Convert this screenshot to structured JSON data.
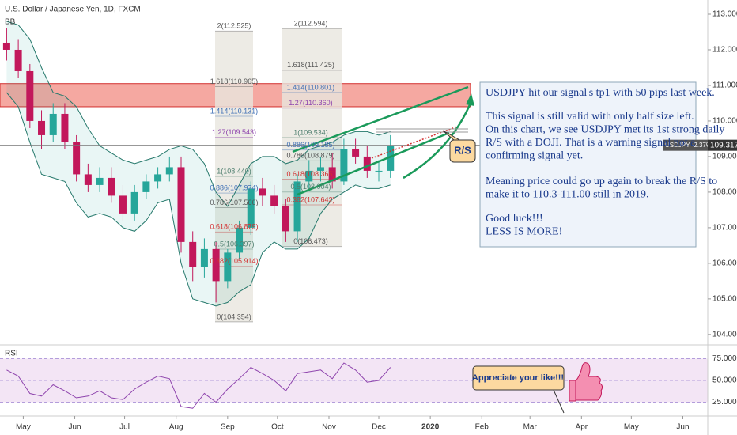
{
  "chart_data": {
    "type": "candlestick",
    "title": "U.S. Dollar / Japanese Yen, 1D, FXCM",
    "indicator": "BB",
    "x": [
      -10,
      -3,
      4,
      11,
      18,
      25,
      32,
      39,
      46,
      53,
      60,
      67,
      74,
      81,
      88,
      95,
      102,
      109,
      116,
      123,
      130,
      137,
      144,
      151,
      158,
      165,
      172,
      179,
      186,
      193,
      200,
      207,
      214,
      221
    ],
    "open": [
      112.2,
      112.0,
      111.4,
      110.0,
      109.6,
      110.2,
      109.4,
      108.5,
      108.2,
      108.4,
      107.9,
      107.4,
      108.0,
      108.3,
      108.5,
      108.7,
      106.6,
      105.9,
      106.4,
      105.5,
      106.3,
      107.0,
      108.1,
      107.9,
      107.6,
      106.9,
      108.3,
      108.6,
      108.7,
      108.3,
      109.2,
      109.0,
      108.6,
      108.6
    ],
    "high": [
      112.6,
      112.3,
      111.6,
      110.3,
      110.5,
      110.5,
      109.6,
      108.8,
      108.7,
      108.7,
      108.2,
      108.2,
      108.5,
      108.7,
      109.0,
      109.0,
      106.9,
      106.7,
      106.6,
      106.4,
      107.2,
      108.3,
      108.4,
      108.2,
      107.8,
      108.5,
      108.9,
      109.0,
      109.1,
      109.5,
      109.5,
      109.3,
      108.9,
      109.6
    ],
    "low": [
      111.7,
      111.2,
      109.8,
      109.2,
      109.4,
      109.2,
      108.3,
      108.0,
      108.0,
      107.7,
      107.2,
      107.2,
      107.8,
      108.1,
      108.3,
      106.3,
      105.5,
      105.6,
      104.9,
      105.3,
      106.1,
      106.8,
      107.6,
      107.4,
      106.6,
      106.6,
      108.1,
      108.3,
      108.1,
      108.2,
      108.8,
      108.4,
      108.3,
      108.4
    ],
    "close": [
      112.0,
      111.4,
      110.0,
      109.6,
      110.2,
      109.4,
      108.5,
      108.2,
      108.4,
      107.9,
      107.4,
      108.0,
      108.3,
      108.5,
      108.7,
      106.6,
      105.9,
      106.4,
      105.5,
      106.3,
      107.0,
      108.1,
      107.9,
      107.6,
      106.9,
      108.3,
      108.6,
      108.7,
      108.3,
      109.2,
      109.0,
      108.6,
      108.6,
      109.3
    ],
    "up_color": "#26a69a",
    "down_color": "#c2185b",
    "bb_upper": [
      112.8,
      112.7,
      112.3,
      111.5,
      110.8,
      110.7,
      110.4,
      109.8,
      109.3,
      109.1,
      108.9,
      108.8,
      108.9,
      109.0,
      109.2,
      109.3,
      109.2,
      108.8,
      108.0,
      107.6,
      108.2,
      108.8,
      109.0,
      109.0,
      108.8,
      108.9,
      109.2,
      109.3,
      109.4,
      109.6,
      109.7,
      109.7,
      109.6,
      109.7
    ],
    "bb_lower": [
      110.8,
      110.4,
      109.4,
      108.5,
      108.4,
      108.3,
      107.7,
      107.3,
      107.4,
      107.3,
      107.0,
      106.9,
      107.2,
      107.7,
      107.8,
      106.0,
      105.0,
      104.9,
      104.8,
      104.9,
      105.2,
      105.4,
      106.3,
      106.6,
      106.4,
      106.4,
      106.7,
      107.4,
      107.8,
      108.0,
      108.2,
      108.1,
      108.1,
      108.2
    ],
    "bb_color": "#26796c",
    "xlim": [
      -14,
      412
    ],
    "xticks": [
      {
        "value": 0,
        "label": "May"
      },
      {
        "value": 31,
        "label": "Jun"
      },
      {
        "value": 61,
        "label": "Jul"
      },
      {
        "value": 92,
        "label": "Aug"
      },
      {
        "value": 123,
        "label": "Sep"
      },
      {
        "value": 153,
        "label": "Oct"
      },
      {
        "value": 184,
        "label": "Nov"
      },
      {
        "value": 214,
        "label": "Dec"
      },
      {
        "value": 245,
        "label": "2020"
      },
      {
        "value": 276,
        "label": "Feb"
      },
      {
        "value": 305,
        "label": "Mar"
      },
      {
        "value": 336,
        "label": "Apr"
      },
      {
        "value": 366,
        "label": "May"
      },
      {
        "value": 397,
        "label": "Jun"
      }
    ],
    "ylim": [
      103.73,
      113.4
    ],
    "yticks": [
      {
        "value": 104,
        "label": "104.000"
      },
      {
        "value": 105,
        "label": "105.000"
      },
      {
        "value": 106,
        "label": "106.000"
      },
      {
        "value": 107,
        "label": "107.000"
      },
      {
        "value": 108,
        "label": "108.000"
      },
      {
        "value": 109,
        "label": "109.000"
      },
      {
        "value": 110,
        "label": "110.000"
      },
      {
        "value": 111,
        "label": "111.000"
      },
      {
        "value": 112,
        "label": "112.000"
      },
      {
        "value": 113,
        "label": "113.000"
      }
    ],
    "price_tag": {
      "symbol": "USDJPY -2.37%",
      "value": 109.317,
      "label": "109.317"
    },
    "zone": {
      "low": 110.4,
      "high": 111.05,
      "color": "#f28b82"
    },
    "fib_1": [
      {
        "label": "2(112.525)",
        "level": 112.525,
        "color": "#555555"
      },
      {
        "label": "1.618(110.965)",
        "level": 110.965,
        "color": "#555555"
      },
      {
        "label": "1.414(110.131)",
        "level": 110.131,
        "color": "#3f6fb5"
      },
      {
        "label": "1.27(109.543)",
        "level": 109.543,
        "color": "#8e44ad"
      },
      {
        "label": "1(108.440)",
        "level": 108.44,
        "color": "#4f7f6f"
      },
      {
        "label": "0.886(107.974)",
        "level": 107.974,
        "color": "#3f6fb5"
      },
      {
        "label": "0.786(107.566)",
        "level": 107.566,
        "color": "#555555"
      },
      {
        "label": "0.618(106.879)",
        "level": 106.879,
        "color": "#d32f2f"
      },
      {
        "label": "0.5(106.397)",
        "level": 106.397,
        "color": "#4f7f6f"
      },
      {
        "label": "0.382(105.914)",
        "level": 105.914,
        "color": "#d32f2f"
      },
      {
        "label": "0(104.354)",
        "level": 104.354,
        "color": "#555555"
      }
    ],
    "fib_2": [
      {
        "label": "2(112.594)",
        "level": 112.594,
        "color": "#555555"
      },
      {
        "label": "1.618(111.425)",
        "level": 111.425,
        "color": "#555555"
      },
      {
        "label": "1.414(110.801)",
        "level": 110.801,
        "color": "#3f6fb5"
      },
      {
        "label": "1.27(110.360)",
        "level": 110.36,
        "color": "#8e44ad"
      },
      {
        "label": "1(109.534)",
        "level": 109.534,
        "color": "#4f7f6f"
      },
      {
        "label": "0.886(109.185)",
        "level": 109.185,
        "color": "#3f6fb5"
      },
      {
        "label": "0.786(108.879)",
        "level": 108.879,
        "color": "#555555"
      },
      {
        "label": "0.618(108.365)",
        "level": 108.365,
        "color": "#d32f2f"
      },
      {
        "label": "0.5(108.004)",
        "level": 108.004,
        "color": "#4f7f6f"
      },
      {
        "label": "0.382(107.642)",
        "level": 107.642,
        "color": "#d32f2f"
      },
      {
        "label": "0(106.473)",
        "level": 106.473,
        "color": "#555555"
      }
    ],
    "rsi": {
      "name": "RSI",
      "color": "#8e44ad",
      "values": [
        62,
        55,
        35,
        32,
        45,
        38,
        30,
        32,
        38,
        30,
        28,
        40,
        48,
        55,
        52,
        20,
        18,
        35,
        25,
        40,
        52,
        65,
        58,
        50,
        38,
        58,
        60,
        62,
        52,
        70,
        62,
        48,
        50,
        65
      ],
      "ylim": [
        10,
        90
      ],
      "yticks": [
        {
          "value": 25,
          "label": "25.000"
        },
        {
          "value": 50,
          "label": "50.000"
        },
        {
          "value": 75,
          "label": "75.000"
        }
      ]
    },
    "callout": "R/S",
    "note": [
      [
        "USDJPY hit our signal's tp1 with  50 pips last week."
      ],
      [
        "This signal is still valid with only half size left.",
        "On this chart, we see USDJPY met its 1st strong  daily",
        "R/S with a DOJI. That is a warning signal not a",
        "confirming signal yet."
      ],
      [
        "Meaning price could go up again to break the R/S to",
        "make it to 110.3-111.00 still in 2019."
      ],
      [
        "Good luck!!!",
        "LESS IS MORE!"
      ]
    ],
    "like": "Appreciate your like!!!"
  }
}
